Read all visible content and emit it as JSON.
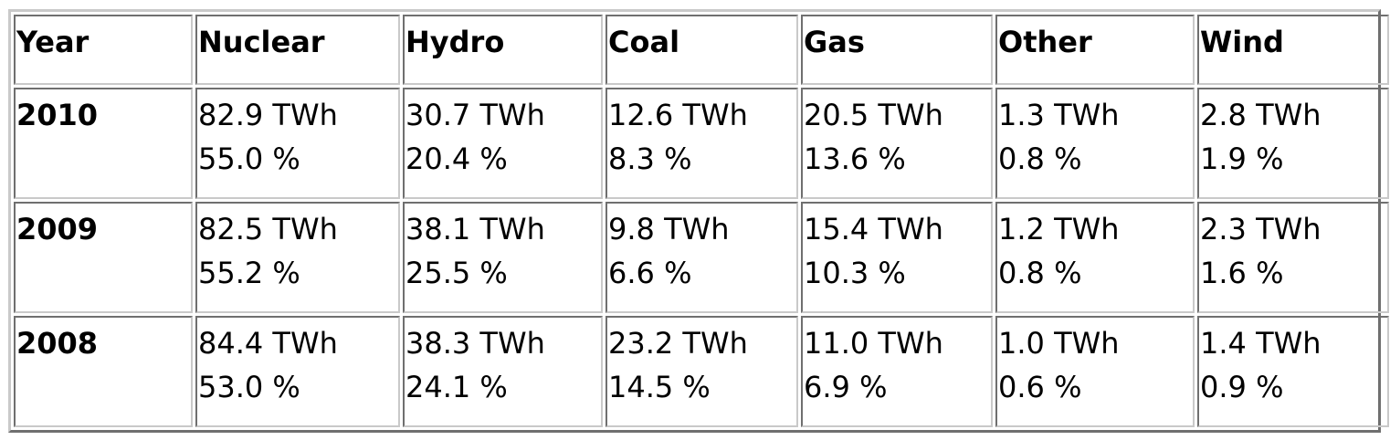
{
  "table": {
    "headers": [
      "Year",
      "Nuclear",
      "Hydro",
      "Coal",
      "Gas",
      "Other",
      "Wind"
    ],
    "rows": [
      {
        "year": "2010",
        "cells": [
          {
            "twh": "82.9 TWh",
            "pct": "55.0 %"
          },
          {
            "twh": "30.7 TWh",
            "pct": "20.4 %"
          },
          {
            "twh": "12.6 TWh",
            "pct": "8.3 %"
          },
          {
            "twh": "20.5 TWh",
            "pct": "13.6 %"
          },
          {
            "twh": "1.3 TWh",
            "pct": "0.8 %"
          },
          {
            "twh": "2.8 TWh",
            "pct": "1.9 %"
          }
        ]
      },
      {
        "year": "2009",
        "cells": [
          {
            "twh": "82.5 TWh",
            "pct": "55.2 %"
          },
          {
            "twh": "38.1 TWh",
            "pct": "25.5 %"
          },
          {
            "twh": "9.8 TWh",
            "pct": "6.6 %"
          },
          {
            "twh": "15.4 TWh",
            "pct": "10.3 %"
          },
          {
            "twh": "1.2 TWh",
            "pct": "0.8 %"
          },
          {
            "twh": "2.3 TWh",
            "pct": "1.6 %"
          }
        ]
      },
      {
        "year": "2008",
        "cells": [
          {
            "twh": "84.4 TWh",
            "pct": "53.0 %"
          },
          {
            "twh": "38.3 TWh",
            "pct": "24.1 %"
          },
          {
            "twh": "23.2 TWh",
            "pct": "14.5 %"
          },
          {
            "twh": "11.0 TWh",
            "pct": "6.9 %"
          },
          {
            "twh": "1.0 TWh",
            "pct": "0.6 %"
          },
          {
            "twh": "1.4 TWh",
            "pct": "0.9 %"
          }
        ]
      }
    ]
  }
}
